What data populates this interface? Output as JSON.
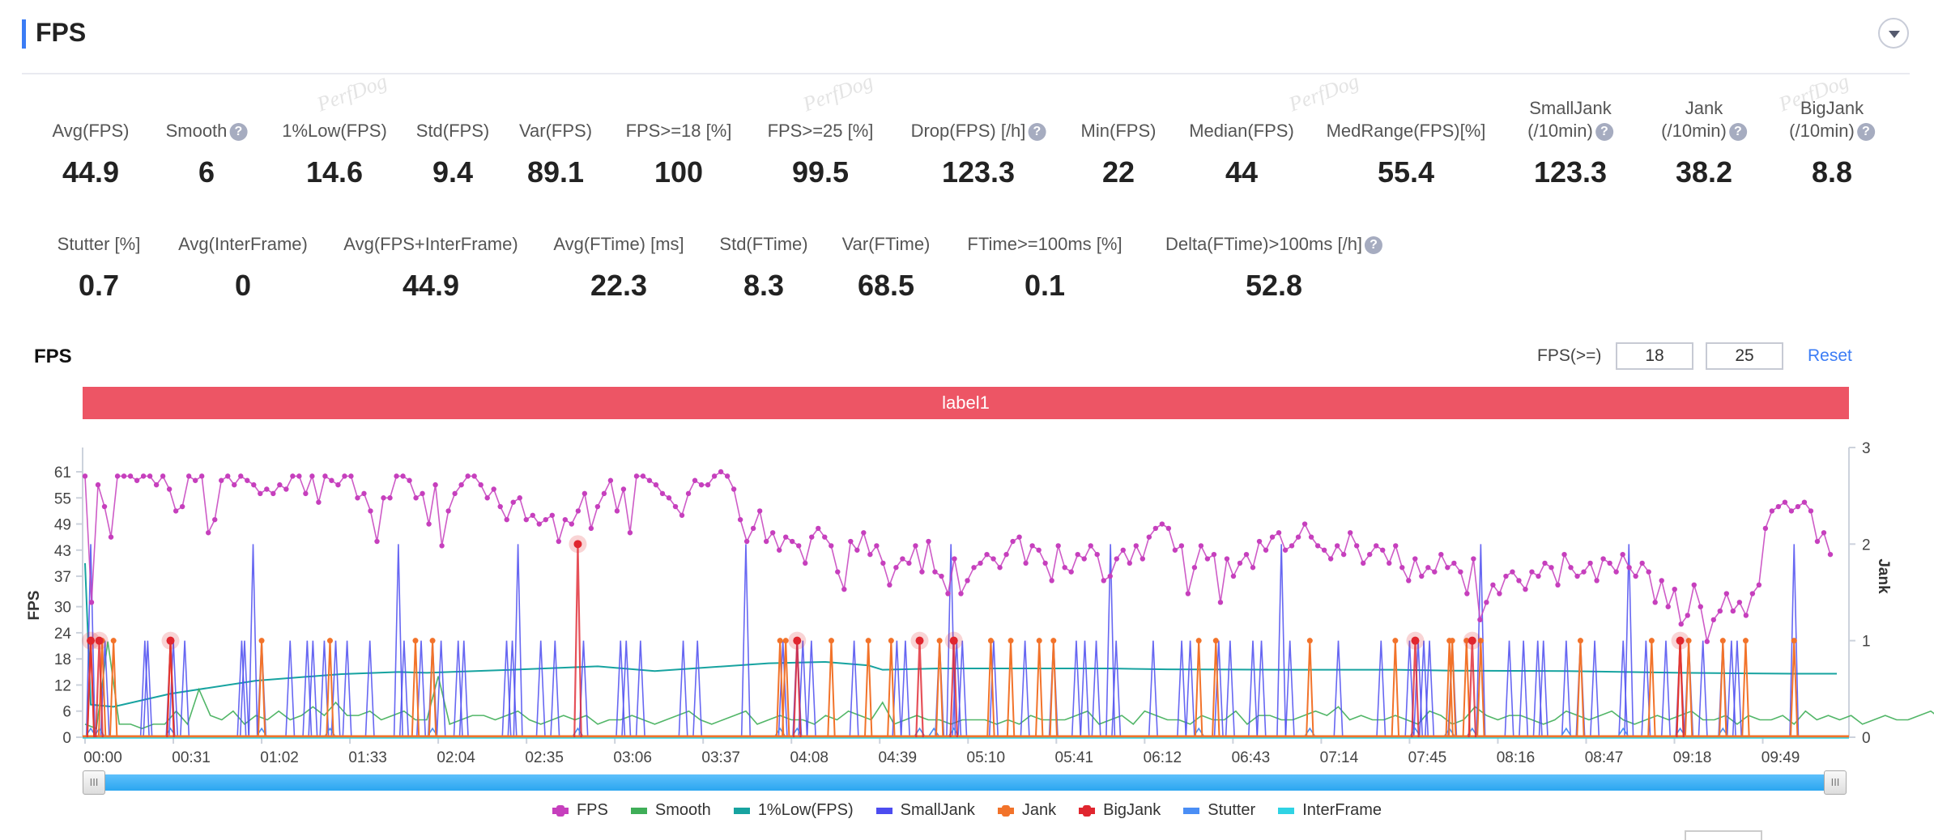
{
  "header": {
    "title": "FPS",
    "collapse_icon": "chevron-down-circle-icon"
  },
  "watermark": "PerfDog",
  "stats_row1": [
    {
      "label": "Avg(FPS)",
      "value": "44.9",
      "help": false
    },
    {
      "label": "Smooth",
      "value": "6",
      "help": true
    },
    {
      "label": "1%Low(FPS)",
      "value": "14.6",
      "help": false
    },
    {
      "label": "Std(FPS)",
      "value": "9.4",
      "help": false
    },
    {
      "label": "Var(FPS)",
      "value": "89.1",
      "help": false
    },
    {
      "label": "FPS>=18 [%]",
      "value": "100",
      "help": false
    },
    {
      "label": "FPS>=25 [%]",
      "value": "99.5",
      "help": false
    },
    {
      "label": "Drop(FPS) [/h]",
      "value": "123.3",
      "help": true
    },
    {
      "label": "Min(FPS)",
      "value": "22",
      "help": false
    },
    {
      "label": "Median(FPS)",
      "value": "44",
      "help": false
    },
    {
      "label": "MedRange(FPS)[%]",
      "value": "55.4",
      "help": false
    },
    {
      "label": "SmallJank",
      "label2": "(/10min)",
      "value": "123.3",
      "help": true
    },
    {
      "label": "Jank",
      "label2": "(/10min)",
      "value": "38.2",
      "help": true
    },
    {
      "label": "BigJank",
      "label2": "(/10min)",
      "value": "8.8",
      "help": true
    }
  ],
  "stats_row2": [
    {
      "label": "Stutter [%]",
      "value": "0.7",
      "help": false
    },
    {
      "label": "Avg(InterFrame)",
      "value": "0",
      "help": false
    },
    {
      "label": "Avg(FPS+InterFrame)",
      "value": "44.9",
      "help": false
    },
    {
      "label": "Avg(FTime) [ms]",
      "value": "22.3",
      "help": false
    },
    {
      "label": "Std(FTime)",
      "value": "8.3",
      "help": false
    },
    {
      "label": "Var(FTime)",
      "value": "68.5",
      "help": false
    },
    {
      "label": "FTime>=100ms [%]",
      "value": "0.1",
      "help": false
    },
    {
      "label": "Delta(FTime)>100ms [/h]",
      "value": "52.8",
      "help": true
    }
  ],
  "chart_panel": {
    "title": "FPS",
    "threshold_label": "FPS(>=)",
    "threshold_1": "18",
    "threshold_2": "25",
    "reset_label": "Reset",
    "label_band": "label1",
    "label_band_color": "#ed5565",
    "slider_handle_glyph": "III"
  },
  "chart_data": {
    "type": "line",
    "title": "FPS",
    "xlabel": "",
    "ylabel": "FPS",
    "ylabel_right": "Jank",
    "yticks": [
      0,
      6,
      12,
      18,
      24,
      30,
      37,
      43,
      49,
      55,
      61
    ],
    "yticks_right": [
      0,
      1,
      2,
      3
    ],
    "ylim": [
      0,
      61
    ],
    "ylim_right": [
      0,
      3
    ],
    "xticks": [
      "00:00",
      "00:31",
      "01:02",
      "01:33",
      "02:04",
      "02:35",
      "03:06",
      "03:37",
      "04:08",
      "04:39",
      "05:10",
      "05:41",
      "06:12",
      "06:43",
      "07:14",
      "07:45",
      "08:16",
      "08:47",
      "09:18",
      "09:49"
    ],
    "xlim_seconds": [
      0,
      615
    ],
    "grid": false,
    "legend_position": "bottom",
    "series": [
      {
        "name": "FPS",
        "color": "#c63fbd",
        "axis": "left",
        "marker": true,
        "step_seconds": 4,
        "values": [
          60,
          31,
          58,
          53,
          46,
          60,
          60,
          60,
          59,
          60,
          60,
          58,
          60,
          57,
          52,
          53,
          60,
          59,
          60,
          47,
          50,
          59,
          60,
          58,
          60,
          59,
          58,
          56,
          57,
          56,
          58,
          57,
          60,
          60,
          56,
          60,
          54,
          60,
          59,
          58,
          60,
          60,
          55,
          56,
          52,
          45,
          55,
          55,
          60,
          60,
          59,
          55,
          56,
          49,
          58,
          44,
          52,
          56,
          58,
          60,
          60,
          58,
          55,
          57,
          53,
          50,
          54,
          55,
          50,
          51,
          49,
          50,
          51,
          45,
          50,
          49,
          52,
          56,
          48,
          53,
          56,
          59,
          52,
          57,
          47,
          60,
          60,
          59,
          58,
          56,
          55,
          53,
          51,
          56,
          59,
          58,
          58,
          60,
          61,
          60,
          57,
          50,
          45,
          48,
          52,
          45,
          47,
          43,
          46,
          45,
          44,
          40,
          46,
          48,
          46,
          44,
          38,
          34,
          45,
          43,
          47,
          42,
          44,
          40,
          35,
          39,
          41,
          40,
          44,
          38,
          45,
          38,
          37,
          33,
          41,
          33,
          36,
          39,
          40,
          42,
          41,
          39,
          42,
          45,
          46,
          40,
          44,
          43,
          40,
          36,
          44,
          39,
          38,
          42,
          41,
          44,
          42,
          36,
          37,
          41,
          43,
          40,
          44,
          41,
          46,
          48,
          49,
          48,
          43,
          44,
          33,
          39,
          44,
          41,
          42,
          31,
          41,
          37,
          40,
          42,
          39,
          45,
          43,
          46,
          47,
          43,
          44,
          46,
          49,
          46,
          44,
          43,
          41,
          44,
          42,
          47,
          44,
          40,
          42,
          44,
          43,
          40,
          44,
          39,
          36,
          41,
          37,
          39,
          38,
          42,
          39,
          40,
          38,
          33,
          41,
          27,
          31,
          35,
          33,
          37,
          38,
          36,
          34,
          38,
          37,
          40,
          39,
          35,
          42,
          39,
          37,
          38,
          40,
          36,
          41,
          40,
          38,
          42,
          39,
          37,
          40,
          38,
          31,
          36,
          30,
          34,
          26,
          28,
          35,
          30,
          22,
          27,
          29,
          33,
          29,
          31,
          28,
          33,
          35,
          48,
          52,
          53,
          54,
          52,
          53,
          54,
          52,
          45,
          47,
          42
        ]
      },
      {
        "name": "Smooth",
        "color": "#3fae58",
        "axis": "left",
        "step_seconds": 4,
        "values": [
          3,
          2,
          22,
          3,
          3,
          2,
          3,
          3,
          6,
          3,
          11,
          5,
          4,
          6,
          3,
          5,
          4,
          6,
          4,
          5,
          7,
          5,
          8,
          5,
          5,
          6,
          4,
          5,
          6,
          4,
          4,
          14,
          3,
          4,
          5,
          5,
          4,
          5,
          6,
          4,
          3,
          4,
          5,
          4,
          5,
          3,
          4,
          4,
          5,
          4,
          3,
          4,
          5,
          6,
          4,
          3,
          4,
          5,
          6,
          3,
          4,
          5,
          4,
          4,
          3,
          5,
          4,
          6,
          5,
          4,
          8,
          3,
          4,
          5,
          4,
          4,
          3,
          4,
          4,
          4,
          3,
          4,
          3,
          5,
          4,
          4,
          4,
          5,
          6,
          3,
          4,
          5,
          3,
          6,
          5,
          4,
          4,
          3,
          5,
          4,
          4,
          6,
          3,
          5,
          5,
          4,
          4,
          5,
          6,
          5,
          7,
          4,
          5,
          4,
          4,
          5,
          4,
          3,
          6,
          5,
          3,
          4,
          7,
          5,
          4,
          5,
          5,
          4,
          3,
          4,
          6,
          5,
          4,
          5,
          6,
          4,
          3,
          4,
          5,
          4,
          5,
          6,
          4,
          4,
          5,
          3,
          5,
          4,
          4,
          5,
          3,
          6,
          4,
          5,
          4,
          5,
          3,
          4,
          5,
          4,
          4,
          5,
          6,
          4,
          5,
          3,
          4,
          5,
          4,
          4,
          4,
          5,
          6,
          4,
          3,
          5,
          4,
          5,
          4,
          3,
          5,
          4,
          5,
          4,
          5,
          3,
          4,
          5,
          6,
          4,
          5,
          4,
          3,
          4,
          5,
          5,
          4,
          3,
          5,
          4,
          4,
          5,
          3,
          4,
          6,
          4,
          5,
          4,
          3,
          5,
          4,
          4,
          5,
          3,
          4,
          5,
          4,
          5,
          4,
          6,
          3,
          4,
          5,
          4,
          5,
          4,
          3,
          5,
          4,
          6,
          4,
          3,
          4,
          5,
          4,
          5,
          3,
          4,
          5,
          7,
          4,
          6,
          5,
          4,
          3,
          4,
          5,
          4,
          5,
          6,
          3,
          5,
          4,
          4,
          5,
          3,
          6,
          4,
          5,
          3,
          4,
          5,
          4,
          5,
          5,
          4,
          3,
          4,
          5
        ]
      },
      {
        "name": "1%Low(FPS)",
        "color": "#17a3a0",
        "axis": "left",
        "x_seconds": [
          0,
          2,
          10,
          30,
          60,
          90,
          110,
          120,
          150,
          180,
          200,
          240,
          260,
          275,
          280,
          300,
          330,
          360,
          380,
          420,
          460,
          480,
          520,
          560,
          600,
          615
        ],
        "values": [
          40,
          7.5,
          7,
          10,
          13,
          14.5,
          15,
          14.8,
          15.5,
          16.3,
          15.2,
          17,
          17.3,
          16.5,
          15.5,
          15.8,
          15.8,
          15.8,
          15.6,
          15.5,
          15.5,
          15.3,
          15.2,
          14.8,
          14.6,
          14.6
        ]
      },
      {
        "name": "SmallJank",
        "color": "#4c4cf0",
        "axis": "right",
        "events_seconds": [
          2,
          7,
          21,
          22,
          30,
          31,
          35,
          55,
          56,
          59,
          62,
          72,
          78,
          80,
          84,
          88,
          92,
          100,
          110,
          112,
          118,
          122,
          125,
          131,
          133,
          148,
          150,
          152,
          160,
          165,
          175,
          188,
          190,
          195,
          210,
          215,
          232,
          245,
          250,
          252,
          255,
          270,
          285,
          288,
          300,
          304,
          306,
          308,
          319,
          330,
          340,
          348,
          351,
          355,
          360,
          362,
          375,
          385,
          388,
          398,
          402,
          410,
          413,
          420,
          423,
          440,
          455,
          465,
          468,
          470,
          472,
          480,
          490,
          500,
          505,
          510,
          512,
          520,
          525,
          530,
          540,
          542,
          548,
          555,
          560,
          563,
          568,
          575,
          578,
          580,
          600
        ],
        "value_on": 1
      },
      {
        "name": "Jank",
        "color": "#f2732a",
        "axis": "right",
        "marker": true,
        "events_seconds": [
          2,
          6,
          10,
          30,
          62,
          86,
          116,
          122,
          262,
          244,
          246,
          275,
          283,
          300,
          318,
          325,
          335,
          340,
          391,
          397,
          430,
          460,
          479,
          480,
          485,
          490,
          525,
          550,
          560,
          563,
          575,
          583,
          600
        ],
        "value": 1
      },
      {
        "name": "BigJank",
        "color": "#e0262f",
        "axis": "right",
        "marker": true,
        "events": [
          {
            "t": 2,
            "v": 1
          },
          {
            "t": 5,
            "v": 1
          },
          {
            "t": 30,
            "v": 1
          },
          {
            "t": 173,
            "v": 2
          },
          {
            "t": 250,
            "v": 1
          },
          {
            "t": 293,
            "v": 1
          },
          {
            "t": 305,
            "v": 1
          },
          {
            "t": 467,
            "v": 1
          },
          {
            "t": 487,
            "v": 1
          },
          {
            "t": 560,
            "v": 1
          }
        ]
      },
      {
        "name": "Stutter",
        "color": "#4a8ef5",
        "axis": "left",
        "events_seconds": [
          2,
          5,
          30,
          62,
          86,
          122,
          173,
          244,
          250,
          293,
          298,
          305,
          391,
          430,
          467,
          479,
          487,
          520,
          540,
          560,
          575
        ],
        "value": 2
      },
      {
        "name": "InterFrame",
        "color": "#2fd3e4",
        "axis": "left",
        "values_constant": 0
      }
    ]
  },
  "legend": [
    {
      "name": "FPS",
      "color": "#c63fbd",
      "marker": true
    },
    {
      "name": "Smooth",
      "color": "#3fae58",
      "marker": false
    },
    {
      "name": "1%Low(FPS)",
      "color": "#17a3a0",
      "marker": false
    },
    {
      "name": "SmallJank",
      "color": "#4c4cf0",
      "marker": false
    },
    {
      "name": "Jank",
      "color": "#f2732a",
      "marker": true
    },
    {
      "name": "BigJank",
      "color": "#e0262f",
      "marker": true
    },
    {
      "name": "Stutter",
      "color": "#4a8ef5",
      "marker": false
    },
    {
      "name": "InterFrame",
      "color": "#2fd3e4",
      "marker": false
    }
  ]
}
